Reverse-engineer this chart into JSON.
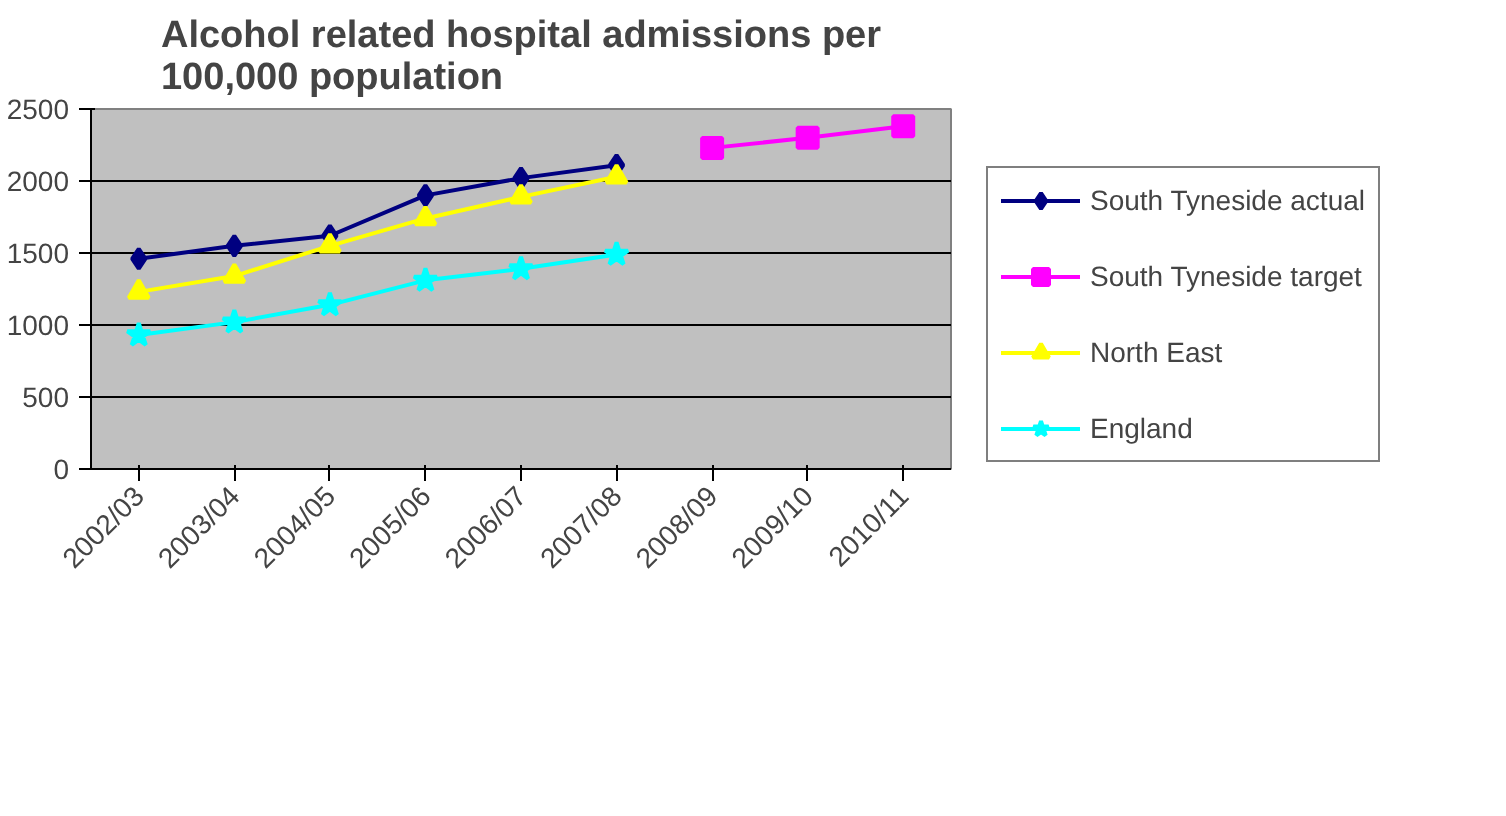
{
  "chart_data": {
    "type": "line",
    "title": "Alcohol related hospital admissions per 100,000 population",
    "categories": [
      "2002/03",
      "2003/04",
      "2004/05",
      "2005/06",
      "2006/07",
      "2007/08",
      "2008/09",
      "2009/10",
      "2010/11"
    ],
    "series": [
      {
        "name": "South Tyneside actual",
        "color": "#000080",
        "marker": "diamond",
        "values": [
          1460,
          1550,
          1620,
          1900,
          2020,
          2110,
          null,
          null,
          null
        ]
      },
      {
        "name": "South Tyneside target",
        "color": "#ff00ff",
        "marker": "square",
        "values": [
          null,
          null,
          null,
          null,
          null,
          null,
          2230,
          2300,
          2380
        ]
      },
      {
        "name": "North East",
        "color": "#ffff00",
        "marker": "triangle",
        "values": [
          1230,
          1340,
          1550,
          1740,
          1890,
          2030,
          null,
          null,
          null
        ]
      },
      {
        "name": "England",
        "color": "#00ffff",
        "marker": "star",
        "values": [
          930,
          1020,
          1140,
          1310,
          1390,
          1490,
          null,
          null,
          null
        ]
      }
    ],
    "ylim": [
      0,
      2500
    ],
    "yticks": [
      0,
      500,
      1000,
      1500,
      2000,
      2500
    ],
    "grid": "y",
    "legend": "right"
  }
}
